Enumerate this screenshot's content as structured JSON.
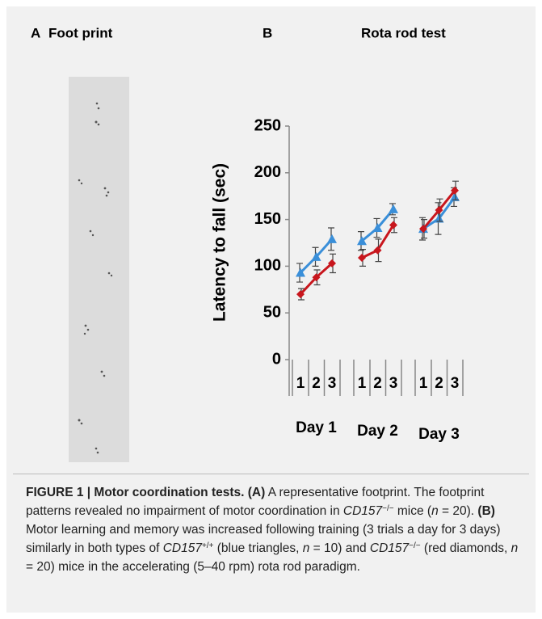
{
  "panel_a": {
    "letter": "A",
    "title": "Foot print"
  },
  "chart_data": {
    "type": "line",
    "panel_letter": "B",
    "title": "Rota rod test",
    "y_label": "Latency to fall (sec)",
    "categories": [
      "1",
      "2",
      "3",
      "1",
      "2",
      "3",
      "1",
      "2",
      "3"
    ],
    "groups": [
      "Day 1",
      "Day 2",
      "Day 3"
    ],
    "ylim": [
      0,
      250
    ],
    "yticks": [
      0,
      50,
      100,
      150,
      200,
      250
    ],
    "series": [
      {
        "color": "#3a8fd9",
        "marker": "triangle",
        "values": [
          93,
          110,
          129,
          127,
          141,
          161,
          140,
          151,
          174
        ],
        "errors": [
          10,
          10,
          12,
          10,
          10,
          6,
          12,
          17,
          10
        ]
      },
      {
        "color": "#c8161d",
        "marker": "diamond",
        "values": [
          70,
          88,
          103,
          109,
          117,
          144,
          140,
          160,
          181
        ],
        "errors": [
          6,
          8,
          10,
          9,
          12,
          8,
          10,
          12,
          10
        ]
      }
    ]
  },
  "caption": [
    "FIGURE 1 | Motor coordination tests.",
    " (A)",
    " A representative footprint. The footprint patterns revealed no impairment of motor coordination in ",
    "CD157",
    "−/−",
    " mice (",
    "n",
    " = 20). ",
    "(B)",
    " Motor learning and memory was increased following training (3 trials a day for 3 days) similarly in both types of ",
    "CD157",
    "+/+",
    " (blue triangles, ",
    "n",
    " = 10) and ",
    "CD157",
    "−/−",
    " (red diamonds, ",
    "n",
    " = 20) mice in the accelerating (5–40 rpm) rota rod paradigm."
  ]
}
